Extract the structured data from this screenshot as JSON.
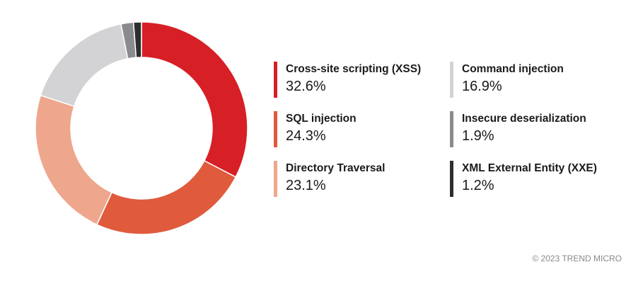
{
  "chart_data": {
    "type": "pie",
    "variant": "donut",
    "categories": [
      "Cross-site scripting (XSS)",
      "SQL injection",
      "Directory Traversal",
      "Command injection",
      "Insecure deserialization",
      "XML External Entity (XXE)"
    ],
    "values": [
      32.6,
      24.3,
      23.1,
      16.9,
      1.9,
      1.2
    ],
    "value_labels": [
      "32.6%",
      "24.3%",
      "23.1%",
      "16.9%",
      "1.9%",
      "1.2%"
    ],
    "colors": [
      "#d71f26",
      "#e05a3c",
      "#eea78c",
      "#d3d3d5",
      "#8a8b8d",
      "#2e2e30"
    ],
    "title": "",
    "legend_position": "right"
  },
  "footer": {
    "copyright": "© 2023 TREND MICRO"
  }
}
